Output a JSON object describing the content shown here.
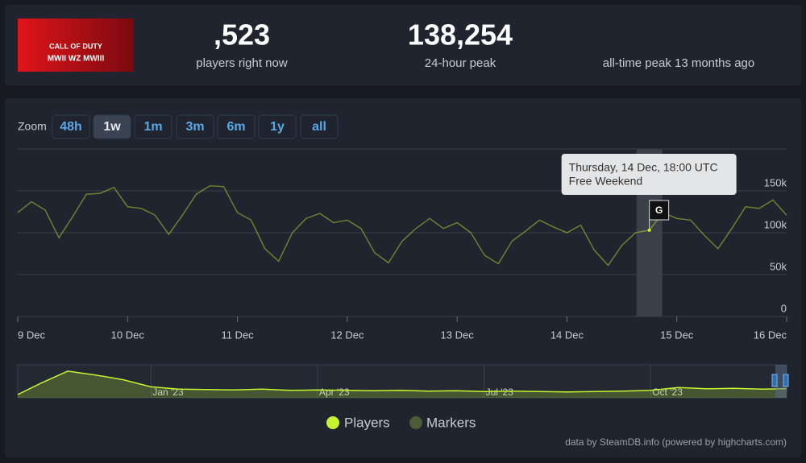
{
  "header": {
    "logo": [
      "CALL OF DUTY",
      "MWII WZ MWIII"
    ],
    "stats": [
      {
        "value": ",523",
        "label": "players right now"
      },
      {
        "value": "138,254",
        "label": "24-hour peak"
      },
      {
        "label": "all-time peak 13 months ago"
      }
    ]
  },
  "zoom": {
    "label": "Zoom",
    "buttons": [
      "48h",
      "1w",
      "1m",
      "3m",
      "6m",
      "1y",
      "all"
    ],
    "selected": 1
  },
  "chart_data": {
    "type": "line",
    "x": [
      0,
      0.125,
      0.25,
      0.375,
      0.5,
      0.625,
      0.75,
      0.875,
      1,
      1.125,
      1.25,
      1.375,
      1.5,
      1.625,
      1.75,
      1.875,
      2,
      2.125,
      2.25,
      2.375,
      2.5,
      2.625,
      2.75,
      2.875,
      3,
      3.125,
      3.25,
      3.375,
      3.5,
      3.625,
      3.75,
      3.875,
      4,
      4.125,
      4.25,
      4.375,
      4.5,
      4.625,
      4.75,
      4.875,
      5,
      5.125,
      5.25,
      5.375,
      5.5,
      5.625,
      5.75,
      5.875,
      6,
      6.125,
      6.25,
      6.375,
      6.5,
      6.625,
      6.75,
      6.875,
      7
    ],
    "series": [
      {
        "name": "Players",
        "color": "#c6f430",
        "values": [
          124000,
          137000,
          127000,
          94000,
          119000,
          146000,
          147000,
          154000,
          131000,
          129000,
          121000,
          98000,
          121000,
          146000,
          156000,
          155000,
          124000,
          115000,
          81000,
          66000,
          100000,
          117000,
          123000,
          112000,
          115000,
          105000,
          76000,
          64000,
          90000,
          105000,
          117000,
          105000,
          112000,
          100000,
          73000,
          63000,
          90000,
          102000,
          115000,
          107000,
          100000,
          109000,
          79000,
          61000,
          85000,
          100000,
          103000,
          124000,
          117000,
          115000,
          97000,
          81000,
          105000,
          131000,
          129000,
          139000,
          121000
        ]
      }
    ],
    "marker_series": {
      "name": "Markers",
      "color": "#4b5a37"
    },
    "markers": [
      {
        "x": 5.75,
        "label": "G",
        "title": "Thursday, 14 Dec, 18:00 UTC",
        "text": "Free Weekend"
      }
    ],
    "xlim": [
      0,
      7
    ],
    "xticks": [
      {
        "value": 0,
        "label": "9 Dec"
      },
      {
        "value": 1,
        "label": "10 Dec"
      },
      {
        "value": 2,
        "label": "11 Dec"
      },
      {
        "value": 3,
        "label": "12 Dec"
      },
      {
        "value": 4,
        "label": "13 Dec"
      },
      {
        "value": 5,
        "label": "14 Dec"
      },
      {
        "value": 6,
        "label": "15 Dec"
      },
      {
        "value": 7,
        "label": "16 Dec"
      }
    ],
    "ylim": [
      0,
      200000
    ],
    "yticks": [
      0,
      {
        "value": 50000,
        "label": "50k"
      },
      {
        "value": 100000,
        "label": "100k"
      },
      {
        "value": 150000,
        "label": "150k"
      }
    ],
    "grid": true,
    "navigator": {
      "x": [
        -2.4,
        -2,
        -1.5,
        -1,
        -0.5,
        0,
        0.5,
        1,
        1.5,
        2,
        2.5,
        3,
        3.5,
        4,
        4.5,
        5,
        5.5,
        6,
        6.5,
        7,
        7.5,
        8,
        8.5,
        9,
        9.5,
        10,
        10.5,
        11,
        11.45
      ],
      "values": [
        40000,
        180000,
        340000,
        290000,
        230000,
        140000,
        110000,
        105000,
        100000,
        110000,
        95000,
        100000,
        95000,
        90000,
        95000,
        85000,
        90000,
        80000,
        85000,
        80000,
        75000,
        80000,
        85000,
        95000,
        130000,
        115000,
        120000,
        110000,
        115000
      ],
      "xlim": [
        -2.4,
        11.45
      ],
      "ylim": [
        0,
        400000
      ],
      "xticks": [
        {
          "value": 0,
          "label": "Jan '23"
        },
        {
          "value": 3,
          "label": "Apr '23"
        },
        {
          "value": 6,
          "label": "Jul '23"
        },
        {
          "value": 9,
          "label": "Oct '23"
        }
      ]
    },
    "credit": "data by SteamDB.info (powered by highcharts.com)"
  }
}
